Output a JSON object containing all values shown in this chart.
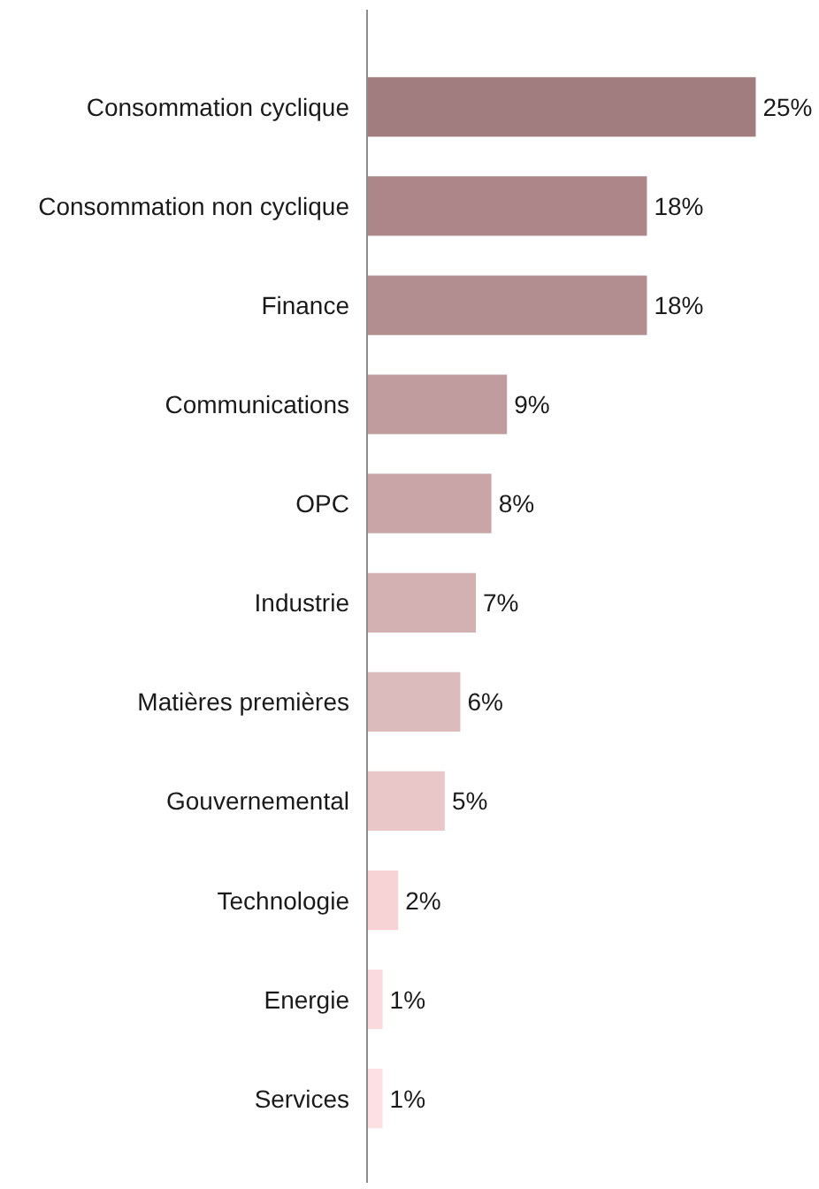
{
  "chart_data": {
    "type": "bar",
    "orientation": "horizontal",
    "grid": false,
    "tick_labels": "y",
    "value_labels": [
      "25%",
      "18%",
      "18%",
      "9%",
      "8%",
      "7%",
      "6%",
      "5%",
      "2%",
      "1%",
      "1%"
    ],
    "categories": [
      "Consommation cyclique",
      "Consommation non cyclique",
      "Finance",
      "Communications",
      "OPC",
      "Industrie",
      "Matières premières",
      "Gouvernemental",
      "Technologie",
      "Energie",
      "Services"
    ],
    "values": [
      25,
      18,
      18,
      9,
      8,
      7,
      6,
      5,
      2,
      1,
      1
    ],
    "colors": [
      "#a27d7f",
      "#ac8688",
      "#b38e90",
      "#c09c9e",
      "#c9a5a8",
      "#d3b1b3",
      "#dcbbbd",
      "#e9c6c8",
      "#f8d3d6",
      "#fbdadd",
      "#fde0e2"
    ]
  }
}
